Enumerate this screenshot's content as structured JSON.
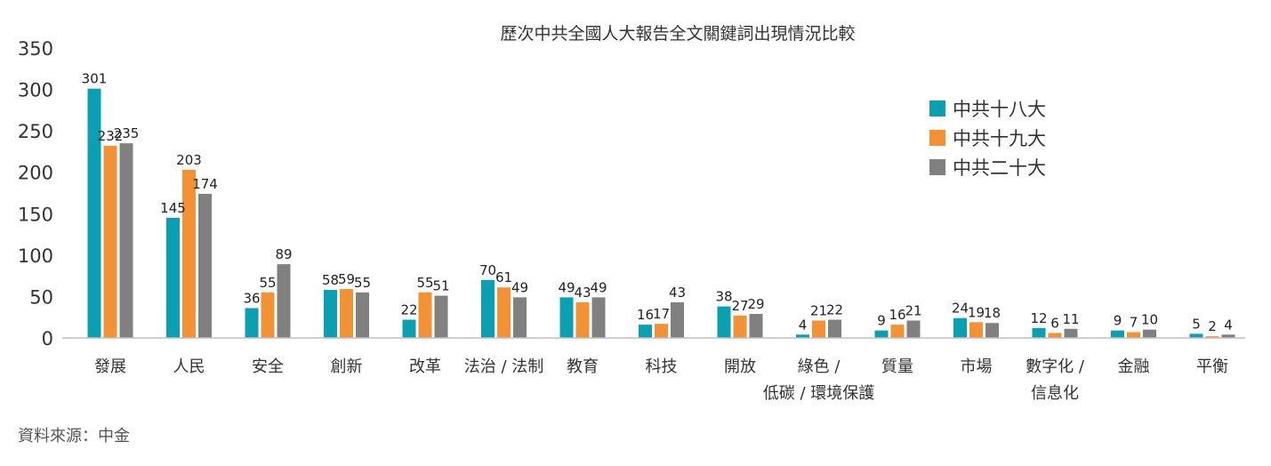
{
  "chart_data": {
    "type": "bar",
    "title": "歷次中共全國人大報告全文關鍵詞出現情況比較",
    "xlabel": "",
    "ylabel": "",
    "ylim": [
      0,
      350
    ],
    "yticks": [
      0,
      50,
      100,
      150,
      200,
      250,
      300,
      350
    ],
    "grid": false,
    "legend_position": "top-right",
    "categories": [
      [
        "發展"
      ],
      [
        "人民"
      ],
      [
        "安全"
      ],
      [
        "創新"
      ],
      [
        "改革"
      ],
      [
        "法治 / 法制"
      ],
      [
        "教育"
      ],
      [
        "科技"
      ],
      [
        "開放"
      ],
      [
        "綠色 /",
        "低碳 / 環境保護"
      ],
      [
        "質量"
      ],
      [
        "市場"
      ],
      [
        "數字化 /",
        "信息化"
      ],
      [
        "金融"
      ],
      [
        "平衡"
      ]
    ],
    "series": [
      {
        "name": "中共十八大",
        "color": "#0a9fb1",
        "values": [
          301,
          145,
          36,
          58,
          22,
          70,
          49,
          16,
          38,
          4,
          9,
          24,
          12,
          9,
          5
        ]
      },
      {
        "name": "中共十九大",
        "color": "#f39234",
        "values": [
          232,
          203,
          55,
          59,
          55,
          61,
          43,
          17,
          27,
          21,
          16,
          19,
          6,
          7,
          2
        ]
      },
      {
        "name": "中共二十大",
        "color": "#808080",
        "values": [
          235,
          174,
          89,
          55,
          51,
          49,
          49,
          43,
          29,
          22,
          21,
          18,
          11,
          10,
          4
        ]
      }
    ]
  },
  "source": "資料來源：中金"
}
